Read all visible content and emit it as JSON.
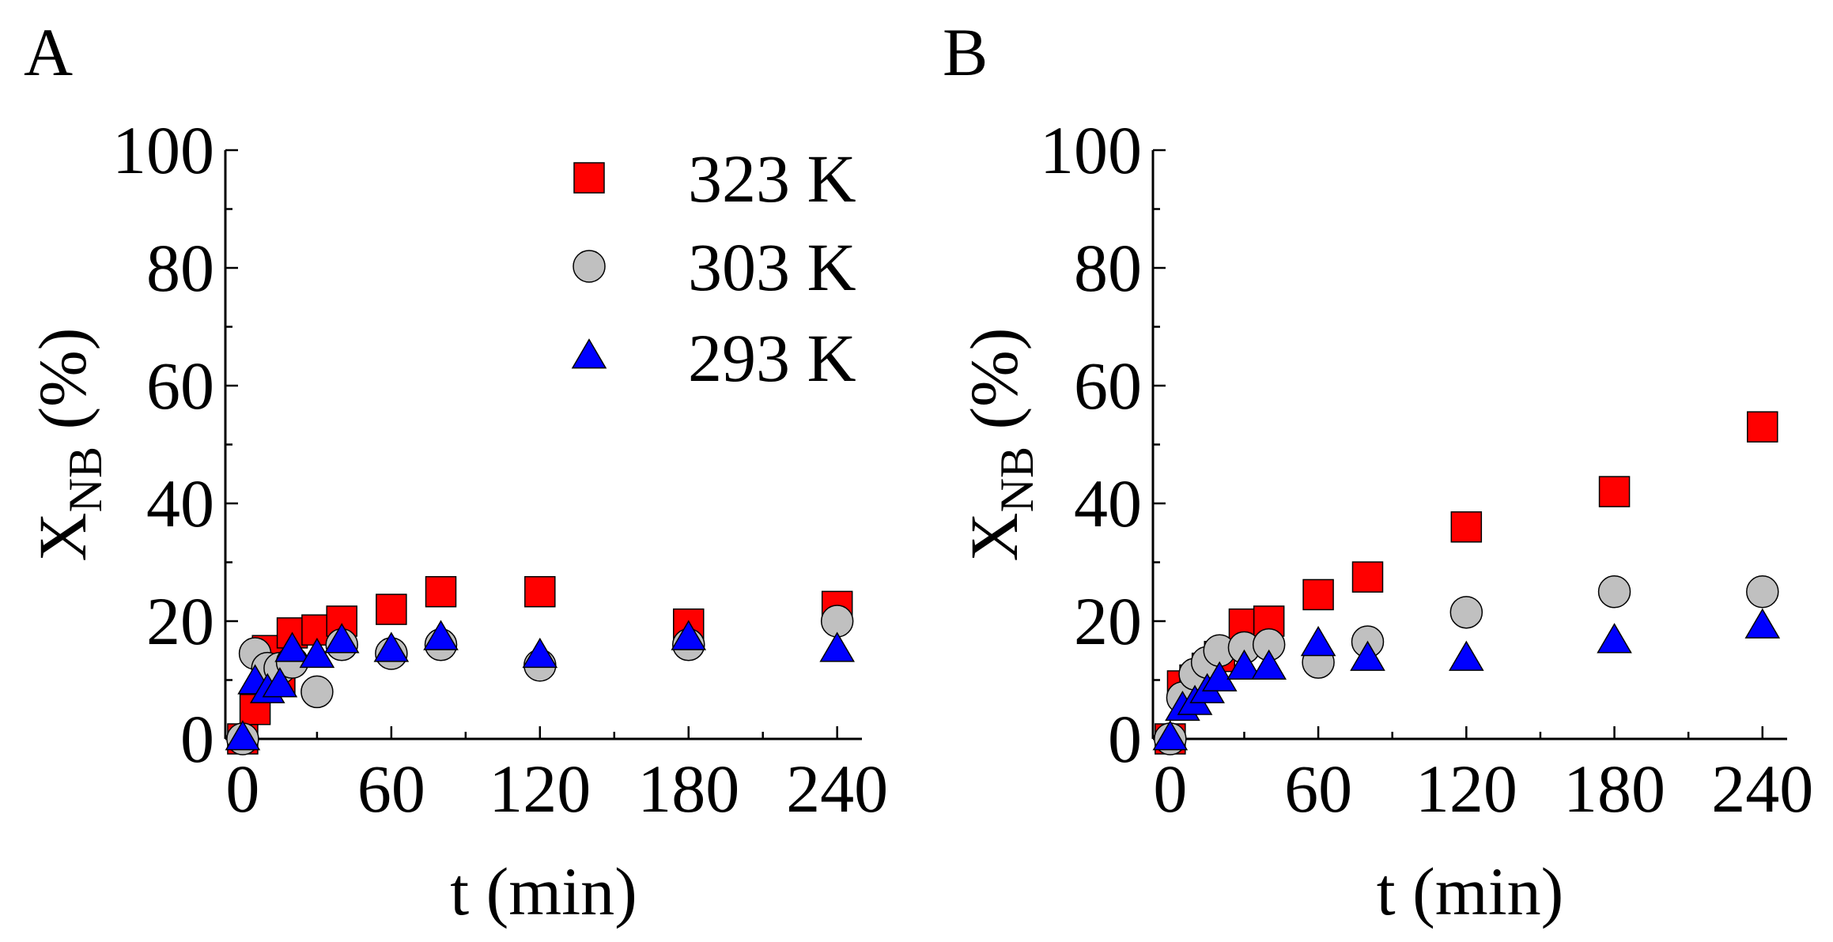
{
  "figure": {
    "panel_a_letter": "A",
    "panel_b_letter": "B"
  },
  "legend": [
    {
      "label": "323 K",
      "marker": "square",
      "color": "#ff0000"
    },
    {
      "label": "303 K",
      "marker": "circle",
      "color": "#c0c0c0"
    },
    {
      "label": "293 K",
      "marker": "triangle",
      "color": "#0000ff"
    }
  ],
  "chart_data": [
    {
      "type": "scatter",
      "panel": "A",
      "title": "",
      "xlabel": "t (min)",
      "ylabel_main": "X",
      "ylabel_sub": "NB",
      "ylabel_unit": " (%)",
      "xlim": [
        -7,
        250
      ],
      "ylim": [
        0,
        100
      ],
      "xticks": [
        0,
        60,
        120,
        180,
        240
      ],
      "yticks": [
        0,
        20,
        40,
        60,
        80,
        100
      ],
      "series": [
        {
          "name": "323 K",
          "marker": "square",
          "color": "#ff0000",
          "x": [
            0,
            5,
            10,
            15,
            20,
            30,
            40,
            60,
            80,
            120,
            180,
            240
          ],
          "y": [
            0,
            5,
            15,
            10,
            18,
            18.5,
            20,
            22,
            25,
            25,
            19.5,
            22.5
          ]
        },
        {
          "name": "303 K",
          "marker": "circle",
          "color": "#c0c0c0",
          "x": [
            0,
            5,
            10,
            15,
            20,
            30,
            40,
            60,
            80,
            120,
            180,
            240
          ],
          "y": [
            0,
            14.5,
            12,
            12,
            13,
            8,
            16,
            14.5,
            16,
            12.5,
            16,
            20
          ]
        },
        {
          "name": "293 K",
          "marker": "triangle",
          "color": "#0000ff",
          "x": [
            0,
            5,
            10,
            15,
            20,
            30,
            40,
            60,
            80,
            120,
            180,
            240
          ],
          "y": [
            0,
            9.5,
            8,
            9,
            15,
            14,
            16.5,
            15,
            17,
            14,
            17,
            15
          ]
        }
      ]
    },
    {
      "type": "scatter",
      "panel": "B",
      "title": "",
      "xlabel": "t (min)",
      "ylabel_main": "X",
      "ylabel_sub": "NB",
      "ylabel_unit": " (%)",
      "xlim": [
        -7,
        250
      ],
      "ylim": [
        0,
        100
      ],
      "xticks": [
        0,
        60,
        120,
        180,
        240
      ],
      "yticks": [
        0,
        20,
        40,
        60,
        80,
        100
      ],
      "series": [
        {
          "name": "323 K",
          "marker": "square",
          "color": "#ff0000",
          "x": [
            0,
            5,
            10,
            15,
            20,
            30,
            40,
            60,
            80,
            120,
            180,
            240
          ],
          "y": [
            0,
            9,
            10,
            12,
            14,
            19.5,
            20,
            24.5,
            27.5,
            36,
            42,
            53
          ]
        },
        {
          "name": "303 K",
          "marker": "circle",
          "color": "#c0c0c0",
          "x": [
            0,
            5,
            10,
            15,
            20,
            30,
            40,
            60,
            80,
            120,
            180,
            240
          ],
          "y": [
            0,
            7,
            11,
            13,
            15,
            15.5,
            16,
            13,
            16.5,
            21.5,
            25,
            25
          ]
        },
        {
          "name": "293 K",
          "marker": "triangle",
          "color": "#0000ff",
          "x": [
            0,
            5,
            10,
            15,
            20,
            30,
            40,
            60,
            80,
            120,
            180,
            240
          ],
          "y": [
            0,
            5,
            6,
            8,
            10,
            12,
            12,
            16,
            13.5,
            13.5,
            16.5,
            19
          ]
        }
      ]
    }
  ]
}
